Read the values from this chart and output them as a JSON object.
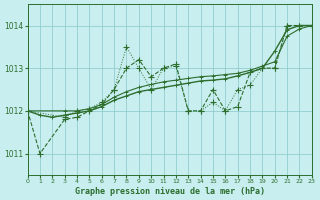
{
  "title": "Graphe pression niveau de la mer (hPa)",
  "background_color": "#c8eef0",
  "grid_color": "#88c8c8",
  "line_color": "#2d6e2d",
  "xlim": [
    0,
    23
  ],
  "ylim": [
    1010.5,
    1014.5
  ],
  "yticks": [
    1011,
    1012,
    1013,
    1014
  ],
  "xticks": [
    0,
    1,
    2,
    3,
    4,
    5,
    6,
    7,
    8,
    9,
    10,
    11,
    12,
    13,
    14,
    15,
    16,
    17,
    18,
    19,
    20,
    21,
    22,
    23
  ],
  "line1_x": [
    0,
    1,
    3,
    4,
    5,
    6,
    7,
    8,
    9,
    10,
    11,
    12,
    13,
    14,
    15,
    16,
    17,
    18,
    19,
    20,
    21,
    22,
    23
  ],
  "line1_y": [
    1012.0,
    1011.0,
    1011.8,
    1011.85,
    1012.0,
    1012.15,
    1012.5,
    1013.0,
    1013.2,
    1012.8,
    1013.0,
    1013.1,
    1012.0,
    1012.0,
    1012.5,
    1012.0,
    1012.1,
    1012.9,
    1013.0,
    1013.0,
    1014.0,
    1014.0,
    1014.0
  ],
  "line2_x": [
    0,
    3,
    4,
    5,
    6,
    7,
    8,
    9,
    10,
    11,
    12,
    13,
    14,
    15,
    16,
    17,
    18,
    19,
    20,
    21,
    22,
    23
  ],
  "line2_y": [
    1012.0,
    1011.85,
    1012.0,
    1012.05,
    1012.2,
    1012.5,
    1013.5,
    1013.0,
    1012.5,
    1013.0,
    1013.05,
    1012.0,
    1012.0,
    1012.2,
    1012.0,
    1012.5,
    1012.6,
    1013.0,
    1013.0,
    1014.0,
    1014.0,
    1014.0
  ],
  "line3_x": [
    0,
    1,
    2,
    3,
    4,
    5,
    6,
    7,
    8,
    9,
    10,
    11,
    12,
    13,
    14,
    15,
    16,
    17,
    18,
    19,
    20,
    21,
    22,
    23
  ],
  "line3_y": [
    1012.0,
    1011.9,
    1011.85,
    1011.9,
    1011.95,
    1012.0,
    1012.1,
    1012.25,
    1012.35,
    1012.45,
    1012.5,
    1012.55,
    1012.6,
    1012.65,
    1012.7,
    1012.72,
    1012.75,
    1012.82,
    1012.9,
    1013.0,
    1013.4,
    1013.9,
    1014.0,
    1014.0
  ],
  "line4_x": [
    0,
    3,
    4,
    5,
    6,
    7,
    8,
    9,
    10,
    11,
    12,
    13,
    14,
    15,
    16,
    17,
    18,
    19,
    20,
    21,
    22,
    23
  ],
  "line4_y": [
    1012.0,
    1012.0,
    1012.0,
    1012.05,
    1012.15,
    1012.32,
    1012.45,
    1012.55,
    1012.62,
    1012.68,
    1012.72,
    1012.76,
    1012.8,
    1012.82,
    1012.85,
    1012.88,
    1012.95,
    1013.05,
    1013.15,
    1013.75,
    1013.92,
    1014.0
  ]
}
